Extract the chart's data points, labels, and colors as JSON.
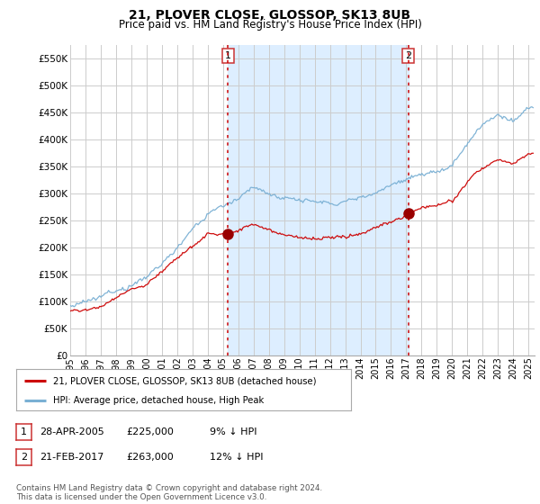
{
  "title": "21, PLOVER CLOSE, GLOSSOP, SK13 8UB",
  "subtitle": "Price paid vs. HM Land Registry's House Price Index (HPI)",
  "ylim": [
    0,
    575000
  ],
  "xlim_start": 1995.0,
  "xlim_end": 2025.4,
  "sale1_date": 2005.32,
  "sale1_price": 225000,
  "sale2_date": 2017.13,
  "sale2_price": 263000,
  "legend_line1": "21, PLOVER CLOSE, GLOSSOP, SK13 8UB (detached house)",
  "legend_line2": "HPI: Average price, detached house, High Peak",
  "line_color_red": "#cc0000",
  "line_color_blue": "#7ab0d4",
  "fill_color_blue": "#ddeeff",
  "dot_color_red": "#990000",
  "bg_color": "#ffffff",
  "grid_color": "#cccccc",
  "vline_color": "#cc0000",
  "note1_date": "28-APR-2005",
  "note1_price": "£225,000",
  "note1_pct": "9% ↓ HPI",
  "note2_date": "21-FEB-2017",
  "note2_price": "£263,000",
  "note2_pct": "12% ↓ HPI",
  "footer": "Contains HM Land Registry data © Crown copyright and database right 2024.\nThis data is licensed under the Open Government Licence v3.0."
}
